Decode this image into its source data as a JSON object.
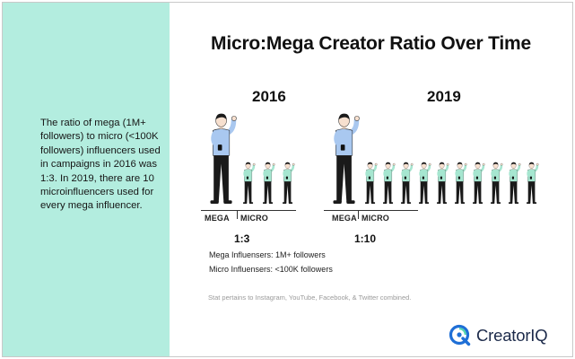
{
  "title": "Micro:Mega Creator Ratio Over Time",
  "sidebar_text": "The ratio of mega (1M+ followers) to micro (<100K followers) influencers used in campaigns in 2016 was 1:3. In 2019, there are 10 microinfluencers used for every mega influencer.",
  "panels": [
    {
      "year": "2016",
      "mega_label": "MEGA",
      "micro_label": "MICRO",
      "ratio": "1:3",
      "mega_count": 1,
      "micro_count": 3
    },
    {
      "year": "2019",
      "mega_label": "MEGA",
      "micro_label": "MICRO",
      "ratio": "1:10",
      "mega_count": 1,
      "micro_count": 10
    }
  ],
  "legend": {
    "mega": "Mega Influensers: 1M+ followers",
    "micro": "Micro Influensers: <100K followers"
  },
  "footnote": "Stat pertains to Instagram, YouTube, Facebook, & Twitter combined.",
  "logo": {
    "text": "CreatorIQ",
    "icon": "creatoriq-q-logo-icon"
  },
  "colors": {
    "sidebar_bg": "#b3eddf",
    "mega_shirt": "#a9c8f0",
    "micro_shirt": "#a6e6d0",
    "pants": "#1a1a1a",
    "skin": "#f7e0cf",
    "logo_blue": "#1f6fd6",
    "logo_teal": "#4fd3b0"
  }
}
